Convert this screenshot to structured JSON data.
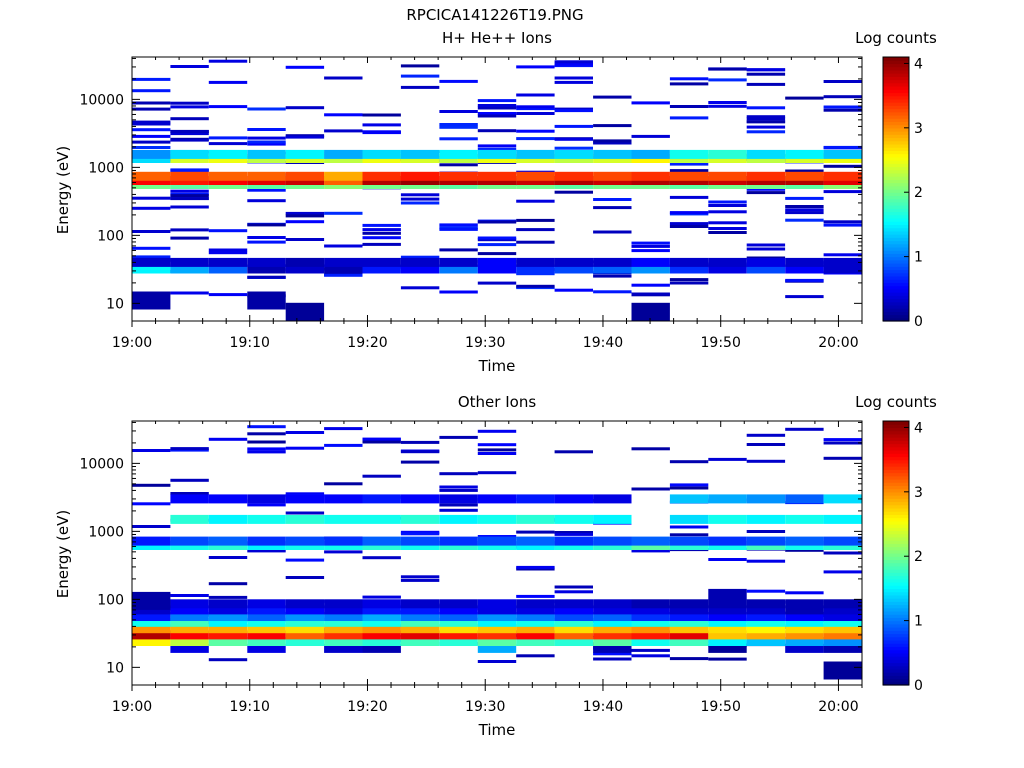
{
  "figure": {
    "title": "RPCICA141226T19.PNG"
  },
  "colorbar": {
    "label": "Log counts",
    "ticks": [
      "0",
      "1",
      "2",
      "3",
      "4"
    ],
    "range": [
      0,
      4.1
    ],
    "colormap": "jet"
  },
  "chart_data": [
    {
      "type": "heatmap",
      "title": "H+ He++ Ions",
      "xlabel": "Time",
      "ylabel": "Energy (eV)",
      "x_ticks": [
        "19:00",
        "19:10",
        "19:20",
        "19:30",
        "19:40",
        "19:50",
        "20:00"
      ],
      "y_ticks": [
        "10",
        "100",
        "1000",
        "10000"
      ],
      "y_scale": "log",
      "ylim": [
        5.5,
        42000
      ],
      "time_bins": [
        "19:01:30",
        "19:04:45",
        "19:08:00",
        "19:11:15",
        "19:14:30",
        "19:17:45",
        "19:21:00",
        "19:24:15",
        "19:27:30",
        "19:30:45",
        "19:34:00",
        "19:37:15",
        "19:40:30",
        "19:43:45",
        "19:47:00",
        "19:50:15",
        "19:53:30",
        "19:56:45",
        "20:00:00"
      ],
      "bands": [
        {
          "energy_ev": 32,
          "values": [
            1.5,
            1.2,
            0.9,
            0.2,
            0.3,
            0.2,
            0.6,
            0.5,
            1.0,
            0.5,
            0.7,
            0.8,
            0.9,
            1.1,
            0.7,
            0.4,
            0.8,
            0.5,
            0.3
          ]
        },
        {
          "energy_ev": 40,
          "values": [
            0.3,
            0.3,
            0.3,
            0.3,
            0.2,
            0.3,
            0.3,
            0.3,
            0.3,
            0.5,
            0.3,
            0.3,
            0.3,
            0.5,
            0.3,
            0.3,
            0.4,
            0.3,
            0.3
          ]
        },
        {
          "energy_ev": 560,
          "values": [
            2.0,
            1.9,
            2.0,
            1.9,
            2.0,
            2.1,
            2.0,
            2.0,
            1.9,
            2.0,
            2.0,
            1.9,
            2.0,
            2.0,
            1.9,
            2.0,
            2.0,
            1.9,
            2.1
          ]
        },
        {
          "energy_ev": 640,
          "values": [
            3.6,
            3.5,
            3.6,
            3.7,
            3.8,
            3.2,
            3.9,
            4.0,
            3.9,
            3.9,
            3.8,
            3.9,
            3.8,
            3.9,
            3.9,
            3.8,
            3.9,
            3.9,
            3.7
          ]
        },
        {
          "energy_ev": 740,
          "values": [
            3.2,
            3.3,
            3.2,
            3.2,
            3.3,
            2.9,
            3.4,
            3.5,
            3.4,
            3.4,
            3.3,
            3.4,
            3.3,
            3.4,
            3.3,
            3.3,
            3.4,
            3.3,
            3.4
          ]
        },
        {
          "energy_ev": 1350,
          "values": [
            1.4,
            2.4,
            2.5,
            2.3,
            2.4,
            2.3,
            2.5,
            2.4,
            2.3,
            2.5,
            2.4,
            2.3,
            2.4,
            2.6,
            2.3,
            2.4,
            2.3,
            2.4,
            2.5
          ]
        },
        {
          "energy_ev": 1550,
          "values": [
            1.1,
            1.4,
            1.5,
            1.3,
            1.5,
            1.2,
            1.4,
            1.3,
            1.5,
            1.4,
            1.3,
            1.4,
            1.3,
            1.2,
            1.6,
            1.7,
            1.4,
            1.5,
            1.3
          ]
        }
      ],
      "blocks": [
        {
          "start": 0,
          "energy_ev": 11,
          "value": 0.15
        },
        {
          "start": 3,
          "energy_ev": 11,
          "value": 0.15
        },
        {
          "start": 4,
          "energy_ev": 7.5,
          "value": 0.1
        },
        {
          "start": 13,
          "energy_ev": 7.5,
          "value": 0.1
        }
      ],
      "sparse_counts": [
        18,
        22,
        10,
        16,
        14,
        8,
        12,
        11,
        13,
        19,
        17,
        14,
        12,
        9,
        16,
        15,
        18,
        13,
        14
      ],
      "sparse_value_range": [
        0.1,
        0.7
      ]
    },
    {
      "type": "heatmap",
      "title": "Other Ions",
      "xlabel": "Time",
      "ylabel": "Energy (eV)",
      "x_ticks": [
        "19:00",
        "19:10",
        "19:20",
        "19:30",
        "19:40",
        "19:50",
        "20:00"
      ],
      "y_ticks": [
        "10",
        "100",
        "1000",
        "10000"
      ],
      "y_scale": "log",
      "ylim": [
        5.5,
        42000
      ],
      "time_bins": [
        "19:01:30",
        "19:04:45",
        "19:08:00",
        "19:11:15",
        "19:14:30",
        "19:17:45",
        "19:21:00",
        "19:24:15",
        "19:27:30",
        "19:30:45",
        "19:34:00",
        "19:37:15",
        "19:40:30",
        "19:43:45",
        "19:47:00",
        "19:50:15",
        "19:53:30",
        "19:56:45",
        "20:00:00"
      ],
      "bands": [
        {
          "energy_ev": 19,
          "values": [
            0,
            0.4,
            0,
            0.4,
            0,
            0.3,
            0.2,
            0,
            0,
            1.2,
            0,
            0,
            0.2,
            0,
            0,
            0.1,
            0,
            0.3,
            0.2
          ]
        },
        {
          "energy_ev": 24,
          "values": [
            2.6,
            2.3,
            1.9,
            1.8,
            1.7,
            1.8,
            1.7,
            1.8,
            1.7,
            1.9,
            1.8,
            1.7,
            1.9,
            1.6,
            1.8,
            1.5,
            1.3,
            1.2,
            1.1
          ]
        },
        {
          "energy_ev": 30,
          "values": [
            3.9,
            3.6,
            3.5,
            3.6,
            3.2,
            3.4,
            3.6,
            3.7,
            3.5,
            3.4,
            3.6,
            3.2,
            3.4,
            3.5,
            3.7,
            2.8,
            2.9,
            3.0,
            3.1
          ]
        },
        {
          "energy_ev": 37,
          "values": [
            3.0,
            2.9,
            2.9,
            2.8,
            2.7,
            2.9,
            3.0,
            2.9,
            2.7,
            2.8,
            2.9,
            2.7,
            2.9,
            3.0,
            2.8,
            2.7,
            2.6,
            2.7,
            2.8
          ]
        },
        {
          "energy_ev": 46,
          "values": [
            1.6,
            1.8,
            1.5,
            1.6,
            1.7,
            1.7,
            1.6,
            1.8,
            1.7,
            1.5,
            1.6,
            1.7,
            1.5,
            1.6,
            1.7,
            1.5,
            1.6,
            1.5,
            1.6
          ]
        },
        {
          "energy_ev": 56,
          "values": [
            0.6,
            1.0,
            1.1,
            0.9,
            1.1,
            1.0,
            1.2,
            1.0,
            0.9,
            1.1,
            1.0,
            0.8,
            0.9,
            0.7,
            0.6,
            0.5,
            0.6,
            0.5,
            0.4
          ]
        },
        {
          "energy_ev": 70,
          "values": [
            0.3,
            0.5,
            0.4,
            0.6,
            0.5,
            0.4,
            0.6,
            0.6,
            0.5,
            0.4,
            0.4,
            0.5,
            0.4,
            0.4,
            0.3,
            0.3,
            0.3,
            0.2,
            0.3
          ]
        },
        {
          "energy_ev": 86,
          "values": [
            0.2,
            0.4,
            0.3,
            0.4,
            0.3,
            0.3,
            0.4,
            0.3,
            0.3,
            0.4,
            0.3,
            0.3,
            0.3,
            0.2,
            0.2,
            0.2,
            0.2,
            0.2,
            0.2
          ]
        },
        {
          "energy_ev": 620,
          "values": [
            1.5,
            1.6,
            1.7,
            1.5,
            1.6,
            1.6,
            1.7,
            1.6,
            1.7,
            1.6,
            1.5,
            1.6,
            1.7,
            1.9,
            1.7,
            1.6,
            1.8,
            1.6,
            1.7
          ]
        },
        {
          "energy_ev": 720,
          "values": [
            0.6,
            0.8,
            0.9,
            0.7,
            0.8,
            0.7,
            0.9,
            0.8,
            0.7,
            0.8,
            0.9,
            0.7,
            0.8,
            0.9,
            0.8,
            0.7,
            0.8,
            0.9,
            0.8
          ]
        },
        {
          "energy_ev": 1500,
          "values": [
            0,
            1.7,
            1.5,
            1.6,
            1.7,
            1.6,
            1.6,
            1.7,
            1.5,
            1.6,
            1.7,
            1.6,
            1.5,
            0,
            1.4,
            1.6,
            1.5,
            1.6,
            1.5
          ]
        },
        {
          "energy_ev": 3000,
          "values": [
            0,
            0.5,
            0.5,
            0.4,
            0.5,
            0.5,
            0.6,
            0.5,
            0.4,
            0.5,
            0.6,
            0.5,
            0.4,
            0,
            1.3,
            1.2,
            1.1,
            0.9,
            1.4
          ]
        }
      ],
      "blocks": [
        {
          "start": 0,
          "energy_ev": 95,
          "value": 0.15
        },
        {
          "start": 15,
          "energy_ev": 105,
          "value": 0.2
        },
        {
          "start": 18,
          "energy_ev": 9,
          "value": 0.1
        }
      ],
      "sparse_counts": [
        6,
        8,
        7,
        9,
        8,
        7,
        10,
        9,
        8,
        9,
        9,
        8,
        8,
        6,
        9,
        8,
        8,
        7,
        8
      ],
      "sparse_value_range": [
        0.1,
        0.6
      ]
    }
  ]
}
